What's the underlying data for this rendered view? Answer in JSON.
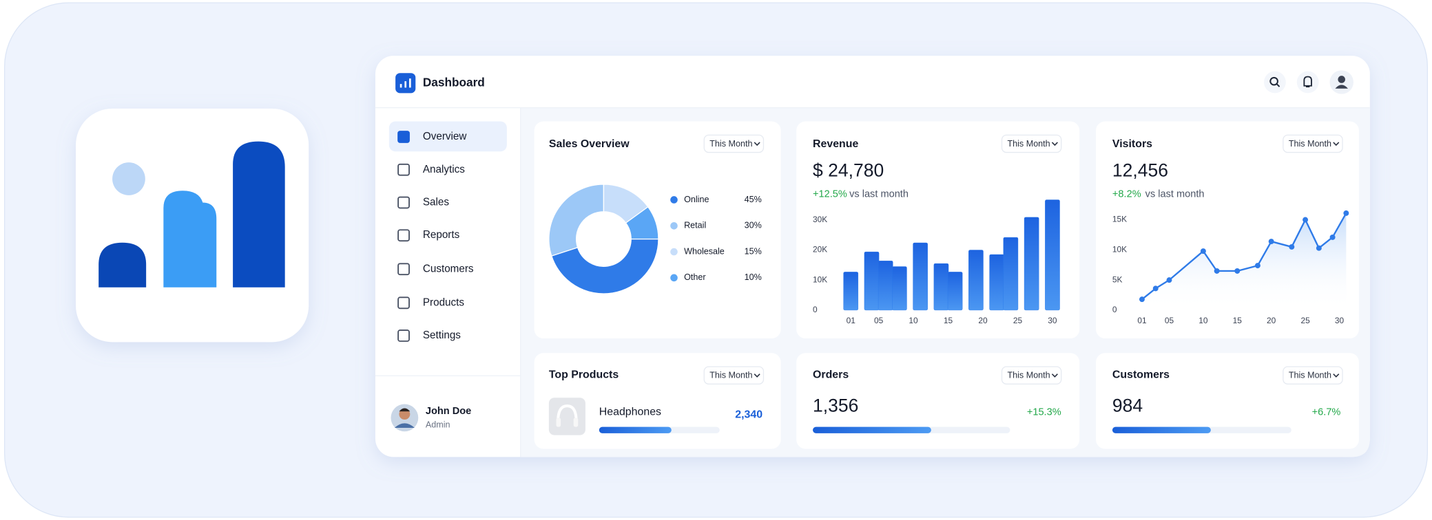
{
  "header": {
    "title": "Dashboard"
  },
  "nav": [
    "Overview",
    "Analytics",
    "Sales",
    "Reports",
    "Customers",
    "Products",
    "Settings"
  ],
  "user": {
    "name": "John Doe",
    "role": "Admin"
  },
  "sales_overview": {
    "title": "Sales Overview",
    "filter": "This Month",
    "chart_data": {
      "type": "pie",
      "categories": [
        "Online",
        "Retail",
        "Wholesale",
        "Other"
      ],
      "values": [
        45,
        30,
        15,
        10
      ],
      "value_labels": [
        "45%",
        "30%",
        "15%",
        "10%"
      ],
      "colors": [
        "#2f7be8",
        "#9cc8f7",
        "#c7defa",
        "#5aa6f5"
      ]
    }
  },
  "revenue": {
    "title": "Revenue",
    "filter": "This Month",
    "value": "$ 24,780",
    "change": "+12.5%",
    "change_note": "vs last month",
    "chart_data": {
      "type": "bar",
      "x": [
        1,
        4,
        6,
        8,
        11,
        14,
        16,
        19,
        22,
        24,
        27,
        30
      ],
      "values": [
        12700,
        19400,
        16400,
        14500,
        22400,
        15500,
        12700,
        20000,
        18500,
        24200,
        30900,
        36700
      ],
      "color": "#2a78ea",
      "xlim": [
        0,
        31
      ],
      "ylim": [
        0,
        37000
      ],
      "xticks": [
        {
          "value": 1,
          "label": "01"
        },
        {
          "value": 5,
          "label": "05"
        },
        10,
        15,
        20,
        25,
        30
      ],
      "yticks": [
        0,
        {
          "value": 10000,
          "label": "10K"
        },
        {
          "value": 20000,
          "label": "20K"
        },
        {
          "value": 30000,
          "label": "30K"
        }
      ]
    }
  },
  "visitors": {
    "title": "Visitors",
    "filter": "This Month",
    "value": "12,456",
    "change": "+8.2%",
    "change_note": "vs last month",
    "chart_data": {
      "type": "line",
      "x": [
        1,
        3,
        5,
        10,
        12,
        15,
        18,
        20,
        23,
        25,
        27,
        29,
        31
      ],
      "values": [
        1800,
        3600,
        5000,
        9800,
        6500,
        6500,
        7400,
        11400,
        10500,
        15000,
        10300,
        12100,
        16100
      ],
      "color": "#2f7be8",
      "xlim": [
        0,
        31
      ],
      "ylim": [
        0,
        16500
      ],
      "xticks": [
        {
          "value": 1,
          "label": "01"
        },
        {
          "value": 5,
          "label": "05"
        },
        10,
        15,
        20,
        25,
        30
      ],
      "yticks": [
        0,
        {
          "value": 5000,
          "label": "5K"
        },
        {
          "value": 10000,
          "label": "10K"
        },
        {
          "value": 15000,
          "label": "15K"
        }
      ]
    }
  },
  "top_products": {
    "title": "Top Products",
    "filter": "This Month",
    "item": "Headphones",
    "count": "2,340",
    "progress": 60
  },
  "orders": {
    "title": "Orders",
    "filter": "This Month",
    "value": "1,356",
    "change": "+15.3%",
    "progress": 60
  },
  "customers": {
    "title": "Customers",
    "filter": "This Month",
    "value": "984",
    "change": "+6.7%",
    "progress": 55
  }
}
